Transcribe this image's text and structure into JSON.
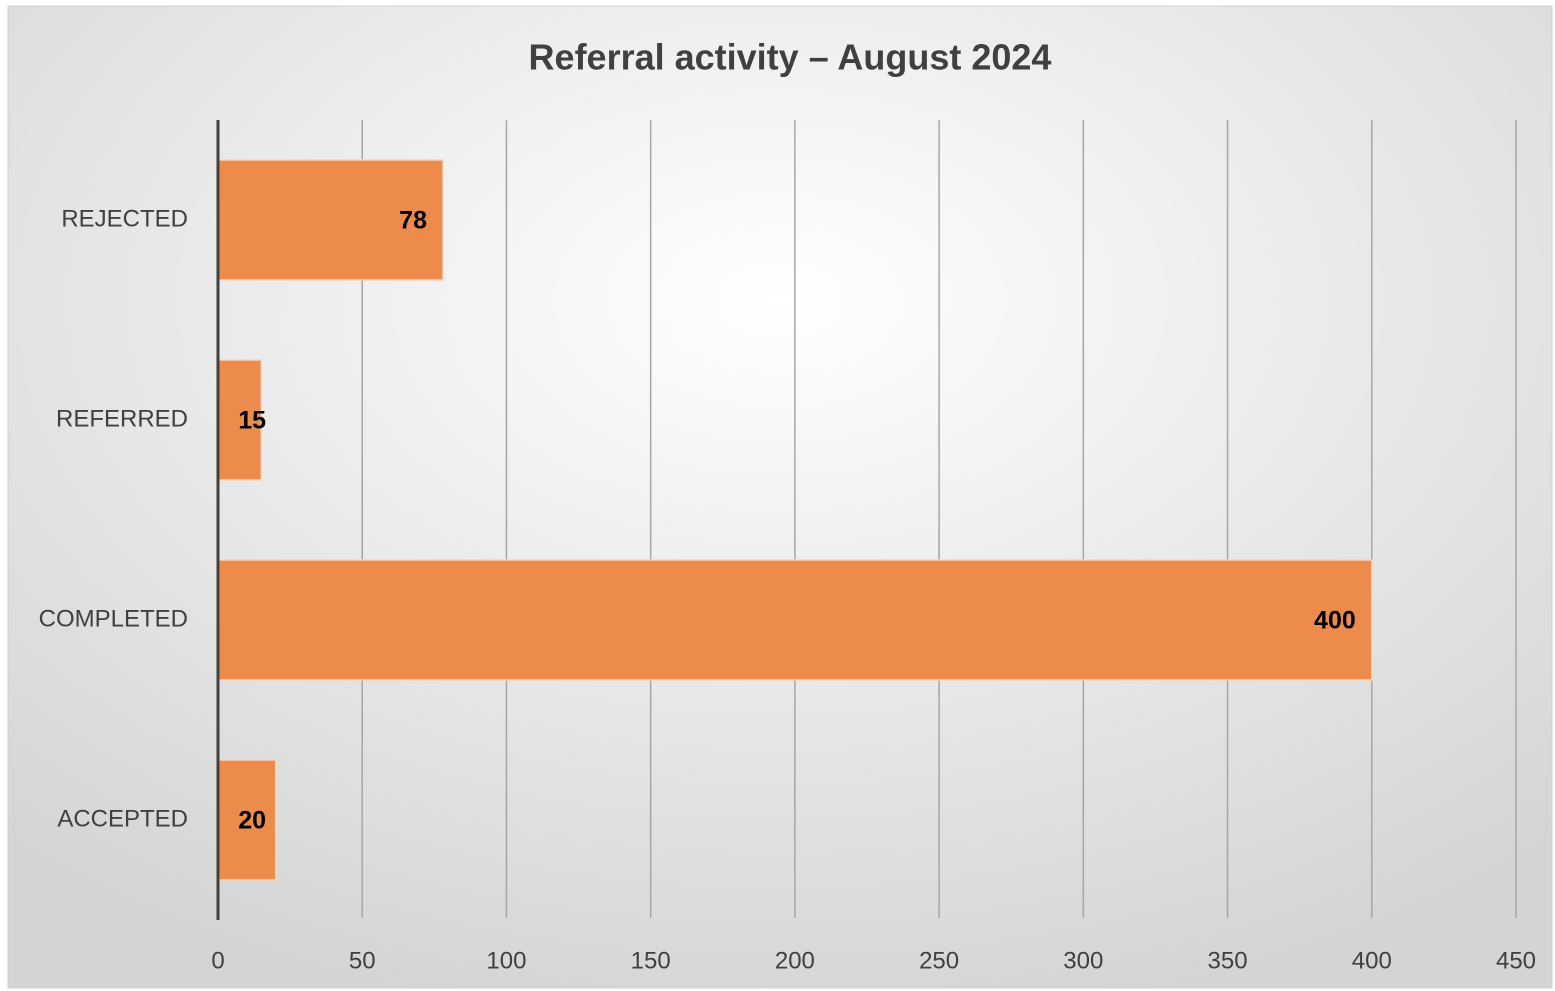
{
  "chart_data": {
    "type": "bar",
    "orientation": "horizontal",
    "title": "Referral activity – August 2024",
    "categories": [
      "REJECTED",
      "REFERRED",
      "COMPLETED",
      "ACCEPTED"
    ],
    "values": [
      78,
      15,
      400,
      20
    ],
    "color": "#ec8b4c",
    "xlim": [
      0,
      450
    ],
    "xticks": [
      0,
      50,
      100,
      150,
      200,
      250,
      300,
      350,
      400,
      450
    ],
    "grid": true
  }
}
